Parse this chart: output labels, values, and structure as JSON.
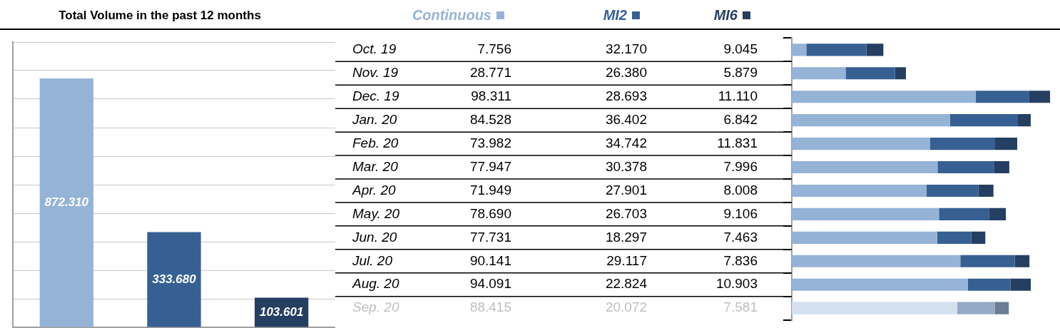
{
  "chart_data": [
    {
      "type": "bar",
      "title": "Total Volume in the past 12 months",
      "categories": [
        null,
        null,
        null
      ],
      "values": [
        872.31,
        333.68,
        103.601
      ],
      "colors": [
        "#95b3d7",
        "#366092",
        "#253f62"
      ],
      "value_labels": [
        "872.310",
        "333.680",
        "103.601"
      ],
      "ylim": [
        0,
        1000
      ],
      "yticks": [
        {
          "value": 0,
          "label": null
        },
        {
          "value": 100,
          "label": null
        },
        {
          "value": 200,
          "label": null
        },
        {
          "value": 300,
          "label": null
        },
        {
          "value": 400,
          "label": null
        },
        {
          "value": 500,
          "label": null
        },
        {
          "value": 600,
          "label": null
        },
        {
          "value": 700,
          "label": null
        },
        {
          "value": 800,
          "label": null
        },
        {
          "value": 900,
          "label": null
        },
        {
          "value": 1000,
          "label": null
        }
      ],
      "grid": "y",
      "tick_labels": false
    },
    {
      "type": "bar",
      "orientation": "horizontal",
      "stacked": true,
      "legend": "top",
      "tick_labels": "y",
      "categories": [
        "Oct. 19",
        "Nov. 19",
        "Dec. 19",
        "Jan. 20",
        "Feb. 20",
        "Mar. 20",
        "Apr. 20",
        "May. 20",
        "Jun. 20",
        "Jul. 20",
        "Aug. 20",
        "Sep. 20"
      ],
      "series": [
        {
          "name": "Continuous",
          "color": "#95b3d7",
          "colors": [
            "#95b3d7",
            "#95b3d7",
            "#95b3d7",
            "#95b3d7",
            "#95b3d7",
            "#95b3d7",
            "#95b3d7",
            "#95b3d7",
            "#95b3d7",
            "#95b3d7",
            "#95b3d7",
            "#d3e0ee"
          ],
          "values": [
            7.756,
            28.771,
            98.311,
            84.528,
            73.982,
            77.947,
            71.949,
            78.69,
            77.731,
            90.141,
            94.091,
            88.415
          ],
          "value_labels": [
            "7.756",
            "28.771",
            "98.311",
            "84.528",
            "73.982",
            "77.947",
            "71.949",
            "78.690",
            "77.731",
            "90.141",
            "94.091",
            "88.415"
          ]
        },
        {
          "name": "MI2",
          "color": "#366092",
          "colors": [
            "#366092",
            "#366092",
            "#366092",
            "#366092",
            "#366092",
            "#366092",
            "#366092",
            "#366092",
            "#366092",
            "#366092",
            "#366092",
            "#95aac6"
          ],
          "values": [
            32.17,
            26.38,
            28.693,
            36.402,
            34.742,
            30.378,
            27.901,
            26.703,
            18.297,
            29.117,
            22.824,
            20.072
          ],
          "value_labels": [
            "32.170",
            "26.380",
            "28.693",
            "36.402",
            "34.742",
            "30.378",
            "27.901",
            "26.703",
            "18.297",
            "29.117",
            "22.824",
            "20.072"
          ]
        },
        {
          "name": "MI6",
          "color": "#253f62",
          "colors": [
            "#253f62",
            "#253f62",
            "#253f62",
            "#253f62",
            "#253f62",
            "#253f62",
            "#253f62",
            "#253f62",
            "#253f62",
            "#253f62",
            "#253f62",
            "#6b7d94"
          ],
          "values": [
            9.045,
            5.879,
            11.11,
            6.842,
            11.831,
            7.996,
            8.008,
            9.106,
            7.463,
            7.836,
            10.903,
            7.581
          ],
          "value_labels": [
            "9.045",
            "5.879",
            "11.110",
            "6.842",
            "11.831",
            "7.996",
            "8.008",
            "9.106",
            "7.463",
            "7.836",
            "10.903",
            "7.581"
          ]
        }
      ]
    }
  ]
}
